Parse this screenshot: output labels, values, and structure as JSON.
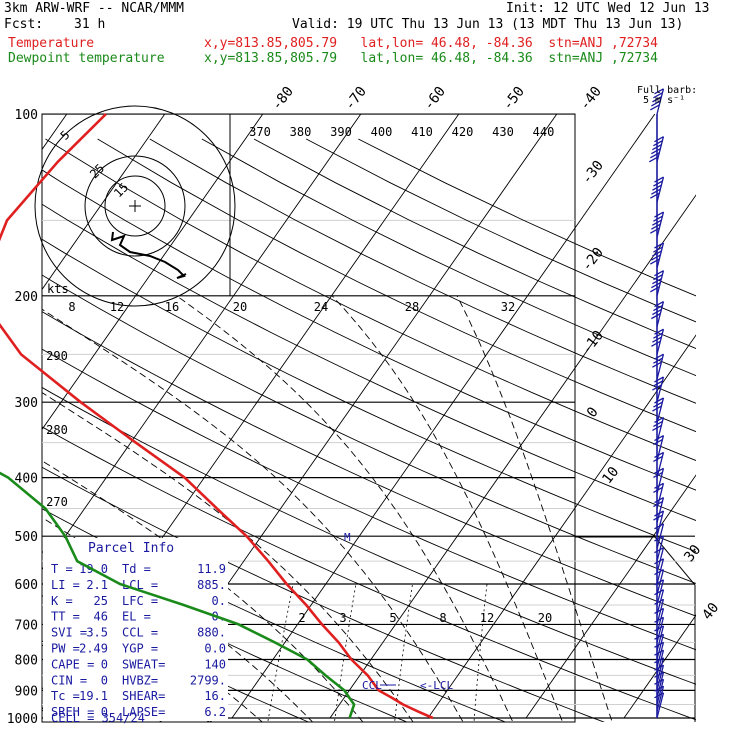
{
  "header": {
    "model": "3km ARW-WRF -- NCAR/MMM",
    "init": "Init: 12 UTC Wed 12 Jun 13",
    "fcst_label": "Fcst:",
    "fcst_value": "31 h",
    "valid": "Valid: 19 UTC Thu 13 Jun 13 (13 MDT Thu 13 Jun 13)",
    "temp_label": "Temperature",
    "temp_info": "x,y=813.85,805.79   lat,lon= 46.48, -84.36  stn=ANJ ,72734",
    "dew_label": "Dewpoint temperature",
    "dew_info": "x,y=813.85,805.79   lat,lon= 46.48, -84.36  stn=ANJ ,72734"
  },
  "colors": {
    "temperature": "#e02020",
    "dewpoint": "#1a8a1a",
    "hodograph": "#000000",
    "barbs": "#1a1aa0",
    "grid": "#000000"
  },
  "barb_legend": {
    "line1": "Full barb:",
    "line2": "5 m s⁻¹"
  },
  "hodograph": {
    "ring_labels": [
      "5",
      "25",
      "15"
    ],
    "kts_label": "kts"
  },
  "parcel_info": {
    "title": "Parcel Info",
    "rows": [
      [
        "T   =",
        "19.0",
        "Td =",
        "11.9"
      ],
      [
        "LI  =",
        "2.1",
        "LCL =",
        "885."
      ],
      [
        "K   =",
        "25",
        "LFC =",
        "0."
      ],
      [
        "TT  =",
        "46",
        "EL  =",
        "0."
      ],
      [
        "SVI =",
        "3.5",
        "CCL =",
        "880."
      ],
      [
        "PW  =",
        "2.49",
        "YGP =",
        "0.0"
      ],
      [
        "CAPE =",
        "0",
        "SWEAT=",
        "140"
      ],
      [
        "CIN  =",
        "0",
        "HVBZ=",
        "2799."
      ],
      [
        "Tc  =",
        "19.1",
        "SHEAR=",
        "16."
      ],
      [
        "SREH =",
        "0",
        "LAPSE=",
        "6.2"
      ]
    ],
    "cell": "CELL = 354/24"
  },
  "level_marks": {
    "ccl": "CCL",
    "lcl": "<-LCL",
    "m": "M"
  },
  "chart_data": {
    "type": "line",
    "title": "",
    "pressure_levels": [
      100,
      200,
      300,
      400,
      500,
      600,
      700,
      800,
      900,
      1000
    ],
    "pressure_labels": [
      "100",
      "200",
      "300",
      "400",
      "500",
      "600",
      "700",
      "800",
      "900",
      "1000"
    ],
    "isotherm_labels": [
      "-80",
      "-70",
      "-60",
      "-50",
      "-40",
      "-30",
      "-20",
      "-10",
      "0",
      "10",
      "30",
      "40"
    ],
    "theta_labels": [
      "370",
      "380",
      "390",
      "400",
      "410",
      "420",
      "430",
      "440"
    ],
    "theta_low_labels": [
      "290",
      "280",
      "270"
    ],
    "mixing_ratio_labels": [
      "8",
      "12",
      "16",
      "20",
      "24",
      "28",
      "32"
    ],
    "mixing_ratio_low_labels": [
      "2",
      "3",
      "5",
      "8",
      "12",
      "20"
    ],
    "series": [
      {
        "name": "Temperature",
        "points": [
          [
            1000,
            20.5
          ],
          [
            975,
            18.5
          ],
          [
            950,
            16.5
          ],
          [
            925,
            14.8
          ],
          [
            900,
            13.0
          ],
          [
            850,
            10.8
          ],
          [
            800,
            8.0
          ],
          [
            750,
            5.5
          ],
          [
            700,
            2.5
          ],
          [
            650,
            -0.5
          ],
          [
            600,
            -4.0
          ],
          [
            550,
            -7.5
          ],
          [
            500,
            -11.5
          ],
          [
            450,
            -16.5
          ],
          [
            400,
            -22.0
          ],
          [
            350,
            -29.5
          ],
          [
            300,
            -38.0
          ],
          [
            250,
            -47.5
          ],
          [
            200,
            -56.0
          ],
          [
            170,
            -57.5
          ],
          [
            150,
            -58.5
          ],
          [
            120,
            -57.5
          ],
          [
            100,
            -56.0
          ]
        ]
      },
      {
        "name": "Dewpoint temperature",
        "points": [
          [
            1000,
            12.0
          ],
          [
            950,
            11.5
          ],
          [
            925,
            10.5
          ],
          [
            900,
            9.5
          ],
          [
            850,
            6.5
          ],
          [
            800,
            3.5
          ],
          [
            750,
            -1.0
          ],
          [
            700,
            -6.0
          ],
          [
            650,
            -13.0
          ],
          [
            600,
            -21.0
          ],
          [
            550,
            -27.0
          ],
          [
            500,
            -30.0
          ],
          [
            450,
            -34.0
          ],
          [
            400,
            -40.0
          ],
          [
            350,
            -49.0
          ],
          [
            300,
            -62.0
          ],
          [
            280,
            -66.0
          ],
          [
            250,
            -68.0
          ],
          [
            220,
            -69.0
          ],
          [
            200,
            -71.0
          ],
          [
            170,
            -76.0
          ],
          [
            150,
            -80.0
          ],
          [
            120,
            -83.0
          ],
          [
            100,
            -85.0
          ]
        ]
      }
    ],
    "hodograph": [
      [
        0,
        0
      ],
      [
        0.5,
        -3
      ],
      [
        2,
        -6
      ],
      [
        4,
        -8
      ],
      [
        7,
        -9
      ],
      [
        10,
        -12
      ],
      [
        11,
        -13
      ],
      [
        12,
        -14
      ],
      [
        9,
        -13
      ]
    ],
    "wind_barbs": {
      "pressures": [
        1000,
        975,
        950,
        925,
        900,
        875,
        850,
        825,
        800,
        775,
        750,
        725,
        700,
        675,
        650,
        625,
        600,
        575,
        550,
        525,
        500,
        475,
        450,
        425,
        400,
        375,
        350,
        325,
        300,
        275,
        250,
        225,
        200,
        180,
        160,
        140,
        120,
        100
      ],
      "speeds_ms": [
        5,
        5,
        5,
        5,
        5,
        5,
        5,
        5,
        5,
        5,
        5,
        5,
        5,
        5,
        5,
        5,
        5,
        5,
        5,
        5,
        10,
        10,
        10,
        10,
        10,
        10,
        15,
        15,
        15,
        15,
        20,
        20,
        25,
        25,
        25,
        25,
        30,
        25
      ]
    }
  }
}
